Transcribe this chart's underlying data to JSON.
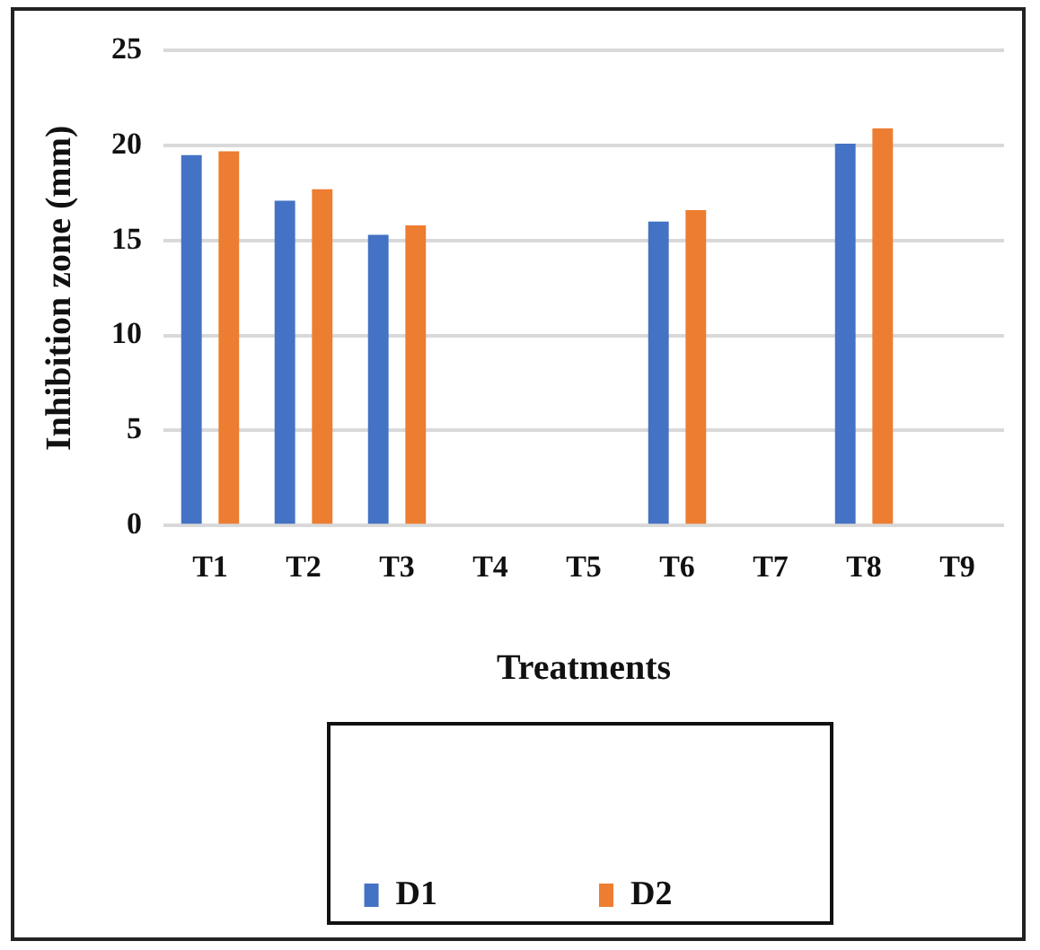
{
  "chart_data": {
    "type": "bar",
    "xlabel": "Treatments",
    "ylabel": "Inhibition zone (mm)",
    "categories": [
      "T1",
      "T2",
      "T3",
      "T4",
      "T5",
      "T6",
      "T7",
      "T8",
      "T9"
    ],
    "series": [
      {
        "name": "D1",
        "color": "#4472c4",
        "values": [
          19.5,
          17.1,
          15.3,
          0,
          0,
          16.0,
          0,
          20.1,
          0
        ]
      },
      {
        "name": "D2",
        "color": "#ed7d31",
        "values": [
          19.7,
          17.7,
          15.8,
          0,
          0,
          16.6,
          0,
          20.9,
          0
        ]
      }
    ],
    "ylim": [
      0,
      25
    ],
    "yticks": [
      0,
      5,
      10,
      15,
      20,
      25
    ],
    "grid": "y",
    "legend": "bottom"
  }
}
